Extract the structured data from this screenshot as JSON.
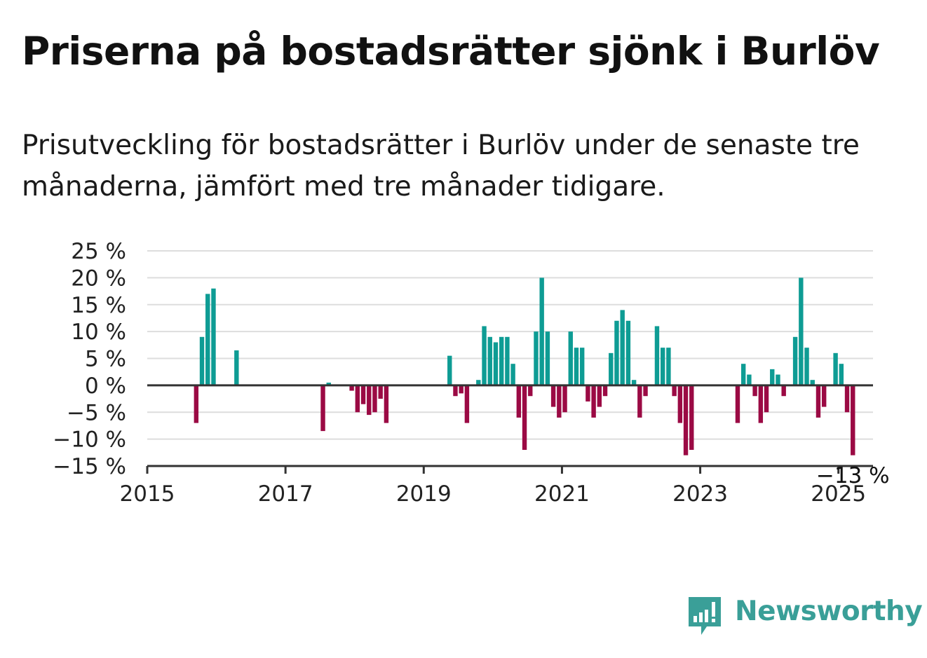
{
  "title": "Priserna på bostadsrätter sjönk i Burlöv",
  "subtitle": "Prisutveckling för bostadsrätter i Burlöv under de senaste tre månaderna, jämfört med tre månader tidigare.",
  "brand": {
    "name": "Newsworthy",
    "color": "#3a9f98"
  },
  "colors": {
    "positive": "#0e9c94",
    "negative": "#9b0a44",
    "grid": "#dddddd",
    "axis": "#333333"
  },
  "chart_data": {
    "type": "bar",
    "title": "",
    "xlabel": "",
    "ylabel": "",
    "ylim": [
      -15,
      25
    ],
    "xlim": [
      "2015-01",
      "2025-07"
    ],
    "y_ticks": [
      25,
      20,
      15,
      10,
      5,
      0,
      -5,
      -10,
      -15
    ],
    "y_tick_labels": [
      "25 %",
      "20 %",
      "15 %",
      "10 %",
      "5 %",
      "0 %",
      "−5 %",
      "−10 %",
      "−15 %"
    ],
    "x_tick_labels": [
      "2015",
      "2017",
      "2019",
      "2021",
      "2023",
      "2025"
    ],
    "grid": true,
    "last_value_label": "−13 %",
    "series": [
      {
        "x": [
          "2015-09",
          "2015-10",
          "2015-11",
          "2015-12",
          "2016-04",
          "2017-07",
          "2017-08",
          "2017-12",
          "2018-01",
          "2018-02",
          "2018-03",
          "2018-04",
          "2018-05",
          "2018-06",
          "2019-05",
          "2019-06",
          "2019-07",
          "2019-08",
          "2019-10",
          "2019-11",
          "2019-12",
          "2020-01",
          "2020-02",
          "2020-03",
          "2020-04",
          "2020-05",
          "2020-06",
          "2020-07",
          "2020-08",
          "2020-09",
          "2020-10",
          "2020-11",
          "2020-12",
          "2021-01",
          "2021-02",
          "2021-03",
          "2021-04",
          "2021-05",
          "2021-06",
          "2021-07",
          "2021-08",
          "2021-09",
          "2021-10",
          "2021-11",
          "2021-12",
          "2022-01",
          "2022-02",
          "2022-03",
          "2022-05",
          "2022-06",
          "2022-07",
          "2022-08",
          "2022-09",
          "2022-10",
          "2022-11",
          "2023-07",
          "2023-08",
          "2023-09",
          "2023-10",
          "2023-11",
          "2023-12",
          "2024-01",
          "2024-02",
          "2024-03",
          "2024-05",
          "2024-06",
          "2024-07",
          "2024-08",
          "2024-09",
          "2024-10",
          "2024-12",
          "2025-01",
          "2025-02",
          "2025-03"
        ],
        "values": [
          -7,
          9,
          17,
          18,
          6.5,
          -8.5,
          0.5,
          -1,
          -5,
          -3.5,
          -5.5,
          -5,
          -2.5,
          -7,
          5.5,
          -2,
          -1.5,
          -7,
          1,
          11,
          9,
          8,
          9,
          9,
          4,
          -6,
          -12,
          -2,
          10,
          20,
          10,
          -4,
          -6,
          -5,
          10,
          7,
          7,
          -3,
          -6,
          -4,
          -2,
          6,
          12,
          14,
          12,
          1,
          -6,
          -2,
          11,
          7,
          7,
          -2,
          -7,
          -13,
          -12,
          -7,
          4,
          2,
          -2,
          -7,
          -5,
          3,
          2,
          -2,
          9,
          20,
          7,
          1,
          -6,
          -4,
          6,
          4,
          -5,
          -13
        ]
      }
    ]
  }
}
